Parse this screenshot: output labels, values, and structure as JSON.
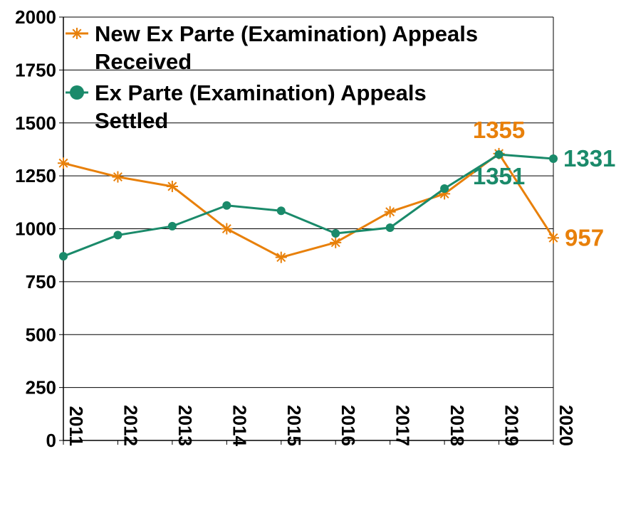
{
  "chart_data": {
    "type": "line",
    "x": [
      "2011",
      "2012",
      "2013",
      "2014",
      "2015",
      "2016",
      "2017",
      "2018",
      "2019",
      "2020"
    ],
    "ylim": [
      0,
      2000
    ],
    "yticks": [
      "0",
      "250",
      "500",
      "750",
      "1000",
      "1250",
      "1500",
      "1750",
      "2000"
    ],
    "grid": true,
    "legend_position": "top-left",
    "series": [
      {
        "name_lines": [
          "New Ex Parte (Examination) Appeals",
          "Received"
        ],
        "color": "#e8800a",
        "marker": "asterisk",
        "values": [
          1310,
          1245,
          1200,
          1000,
          865,
          935,
          1080,
          1165,
          1355,
          957
        ],
        "labels": [
          {
            "index": 8,
            "text": "1355"
          },
          {
            "index": 9,
            "text": "957"
          }
        ]
      },
      {
        "name_lines": [
          "Ex Parte (Examination) Appeals",
          "Settled"
        ],
        "color": "#1a8a6a",
        "marker": "circle",
        "values": [
          870,
          970,
          1012,
          1110,
          1085,
          978,
          1005,
          1190,
          1351,
          1331
        ],
        "labels": [
          {
            "index": 8,
            "text": "1351"
          },
          {
            "index": 9,
            "text": "1331"
          }
        ]
      }
    ]
  }
}
